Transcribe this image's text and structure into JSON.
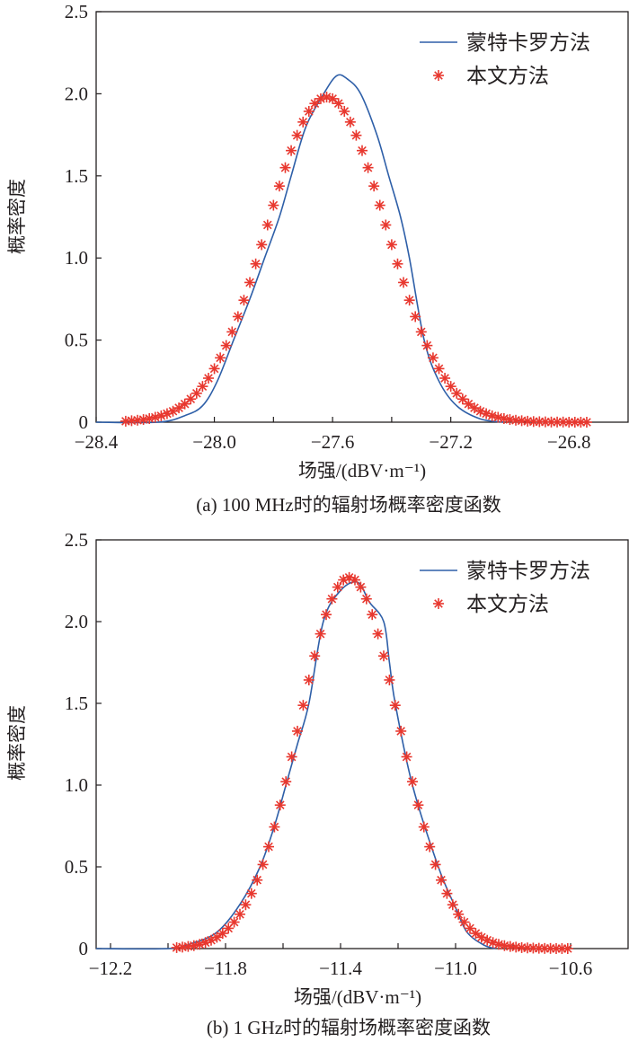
{
  "chart_data": [
    {
      "type": "line",
      "caption": "(a) 100 MHz时的辐射场概率密度函数",
      "xlabel": "场强/(dBV·m⁻¹)",
      "ylabel": "概率密度",
      "xlim": [
        -28.4,
        -26.6
      ],
      "ylim": [
        0,
        2.5
      ],
      "xticks": [
        -28.4,
        -28.2,
        -28.0,
        -27.8,
        -27.6,
        -27.4,
        -27.2,
        -27.0,
        -26.8
      ],
      "xtick_labels": [
        "−28.4",
        "",
        "−28.0",
        "",
        "−27.6",
        "",
        "−27.2",
        "",
        "−26.8"
      ],
      "yticks": [
        0,
        0.5,
        1.0,
        1.5,
        2.0,
        2.5
      ],
      "ytick_labels": [
        "0",
        "0.5",
        "1.0",
        "1.5",
        "2.0",
        "2.5"
      ],
      "grid": false,
      "legend_position": "top-right",
      "series": [
        {
          "name": "蒙特卡罗方法",
          "style": "line",
          "color": "#2e5fa8",
          "points": [
            [
              -28.4,
              0
            ],
            [
              -28.19,
              0
            ],
            [
              -28.1,
              0.04
            ],
            [
              -28.04,
              0.1
            ],
            [
              -27.99,
              0.25
            ],
            [
              -27.935,
              0.5
            ],
            [
              -27.88,
              0.75
            ],
            [
              -27.83,
              1.0
            ],
            [
              -27.78,
              1.25
            ],
            [
              -27.74,
              1.5
            ],
            [
              -27.69,
              1.8
            ],
            [
              -27.63,
              2.0
            ],
            [
              -27.586,
              2.11
            ],
            [
              -27.55,
              2.09
            ],
            [
              -27.505,
              2.0
            ],
            [
              -27.45,
              1.75
            ],
            [
              -27.41,
              1.5
            ],
            [
              -27.37,
              1.25
            ],
            [
              -27.34,
              1.0
            ],
            [
              -27.29,
              0.5
            ],
            [
              -27.24,
              0.25
            ],
            [
              -27.18,
              0.1
            ],
            [
              -27.1,
              0.02
            ],
            [
              -27.02,
              0
            ]
          ]
        },
        {
          "name": "本文方法",
          "style": "asterisk",
          "color": "#e8382f",
          "x": [
            -28.3,
            -28.28,
            -28.26,
            -28.24,
            -28.22,
            -28.2,
            -28.18,
            -28.16,
            -28.14,
            -28.12,
            -28.1,
            -28.08,
            -28.06,
            -28.04,
            -28.02,
            -28.0,
            -27.98,
            -27.96,
            -27.94,
            -27.92,
            -27.9,
            -27.88,
            -27.86,
            -27.84,
            -27.82,
            -27.8,
            -27.78,
            -27.76,
            -27.74,
            -27.72,
            -27.7,
            -27.68,
            -27.66,
            -27.64,
            -27.62,
            -27.6,
            -27.58,
            -27.56,
            -27.54,
            -27.52,
            -27.5,
            -27.48,
            -27.46,
            -27.44,
            -27.42,
            -27.4,
            -27.38,
            -27.36,
            -27.34,
            -27.32,
            -27.3,
            -27.28,
            -27.26,
            -27.24,
            -27.22,
            -27.2,
            -27.18,
            -27.16,
            -27.14,
            -27.12,
            -27.1,
            -27.08,
            -27.06,
            -27.04,
            -27.02,
            -27.0,
            -26.98,
            -26.96,
            -26.94,
            -26.92,
            -26.9,
            -26.88,
            -26.86,
            -26.84,
            -26.82,
            -26.8,
            -26.78,
            -26.76,
            -26.74
          ],
          "y": [
            0.006,
            0.009,
            0.012,
            0.016,
            0.022,
            0.03,
            0.039,
            0.052,
            0.067,
            0.087,
            0.111,
            0.141,
            0.176,
            0.218,
            0.268,
            0.326,
            0.392,
            0.467,
            0.55,
            0.643,
            0.743,
            0.851,
            0.964,
            1.081,
            1.201,
            1.321,
            1.438,
            1.55,
            1.654,
            1.747,
            1.828,
            1.893,
            1.941,
            1.97,
            1.98,
            1.97,
            1.941,
            1.893,
            1.828,
            1.747,
            1.654,
            1.55,
            1.438,
            1.321,
            1.201,
            1.081,
            0.964,
            0.851,
            0.743,
            0.643,
            0.55,
            0.467,
            0.392,
            0.326,
            0.268,
            0.218,
            0.176,
            0.141,
            0.111,
            0.087,
            0.067,
            0.052,
            0.039,
            0.03,
            0.022,
            0.016,
            0.012,
            0.009,
            0.006,
            0.004,
            0.003,
            0.002,
            0.001,
            0.001,
            0.001,
            0,
            0,
            0,
            0
          ]
        }
      ]
    },
    {
      "type": "line",
      "caption": "(b) 1 GHz时的辐射场概率密度函数",
      "xlabel": "场强/(dBV·m⁻¹)",
      "ylabel": "概率密度",
      "xlim": [
        -12.25,
        -10.4
      ],
      "ylim": [
        0,
        2.5
      ],
      "xticks": [
        -12.2,
        -12.0,
        -11.8,
        -11.6,
        -11.4,
        -11.2,
        -11.0,
        -10.8,
        -10.6
      ],
      "xtick_labels": [
        "−12.2",
        "",
        "−11.8",
        "",
        "−11.4",
        "",
        "−11.0",
        "",
        "−10.6"
      ],
      "yticks": [
        0,
        0.5,
        1.0,
        1.5,
        2.0,
        2.5
      ],
      "ytick_labels": [
        "0",
        "0.5",
        "1.0",
        "1.5",
        "2.0",
        "2.5"
      ],
      "grid": false,
      "legend_position": "top-right",
      "series": [
        {
          "name": "蒙特卡罗方法",
          "style": "line",
          "color": "#2e5fa8",
          "points": [
            [
              -12.25,
              0
            ],
            [
              -12.0,
              0
            ],
            [
              -11.92,
              0.03
            ],
            [
              -11.83,
              0.1
            ],
            [
              -11.75,
              0.27
            ],
            [
              -11.68,
              0.5
            ],
            [
              -11.63,
              0.75
            ],
            [
              -11.59,
              1.0
            ],
            [
              -11.55,
              1.25
            ],
            [
              -11.51,
              1.5
            ],
            [
              -11.46,
              2.0
            ],
            [
              -11.4,
              2.19
            ],
            [
              -11.34,
              2.24
            ],
            [
              -11.3,
              2.12
            ],
            [
              -11.25,
              2.0
            ],
            [
              -11.23,
              1.75
            ],
            [
              -11.21,
              1.5
            ],
            [
              -11.15,
              1.0
            ],
            [
              -11.06,
              0.5
            ],
            [
              -11.0,
              0.25
            ],
            [
              -10.96,
              0.1
            ],
            [
              -10.9,
              0.02
            ],
            [
              -10.86,
              0
            ]
          ]
        },
        {
          "name": "本文方法",
          "style": "asterisk",
          "color": "#e8382f",
          "x": [
            -11.97,
            -11.95,
            -11.93,
            -11.91,
            -11.89,
            -11.87,
            -11.85,
            -11.83,
            -11.81,
            -11.79,
            -11.77,
            -11.75,
            -11.73,
            -11.71,
            -11.69,
            -11.67,
            -11.65,
            -11.63,
            -11.61,
            -11.59,
            -11.57,
            -11.55,
            -11.53,
            -11.51,
            -11.49,
            -11.47,
            -11.45,
            -11.43,
            -11.41,
            -11.39,
            -11.37,
            -11.35,
            -11.33,
            -11.31,
            -11.29,
            -11.27,
            -11.25,
            -11.23,
            -11.21,
            -11.19,
            -11.17,
            -11.15,
            -11.13,
            -11.11,
            -11.09,
            -11.07,
            -11.05,
            -11.03,
            -11.01,
            -10.99,
            -10.97,
            -10.95,
            -10.93,
            -10.91,
            -10.89,
            -10.87,
            -10.85,
            -10.83,
            -10.81,
            -10.79,
            -10.77,
            -10.75,
            -10.73,
            -10.71,
            -10.69,
            -10.67,
            -10.65,
            -10.63,
            -10.61
          ],
          "y": [
            0.006,
            0.009,
            0.013,
            0.018,
            0.026,
            0.037,
            0.051,
            0.069,
            0.093,
            0.124,
            0.162,
            0.21,
            0.268,
            0.337,
            0.419,
            0.514,
            0.623,
            0.744,
            0.878,
            1.021,
            1.173,
            1.33,
            1.488,
            1.643,
            1.79,
            1.925,
            2.043,
            2.139,
            2.211,
            2.255,
            2.27,
            2.255,
            2.211,
            2.139,
            2.043,
            1.925,
            1.79,
            1.643,
            1.488,
            1.33,
            1.173,
            1.021,
            0.878,
            0.744,
            0.623,
            0.514,
            0.419,
            0.337,
            0.268,
            0.21,
            0.162,
            0.124,
            0.093,
            0.069,
            0.051,
            0.037,
            0.026,
            0.018,
            0.013,
            0.009,
            0.006,
            0.004,
            0.003,
            0.002,
            0.001,
            0.001,
            0,
            0,
            0
          ]
        }
      ]
    }
  ]
}
